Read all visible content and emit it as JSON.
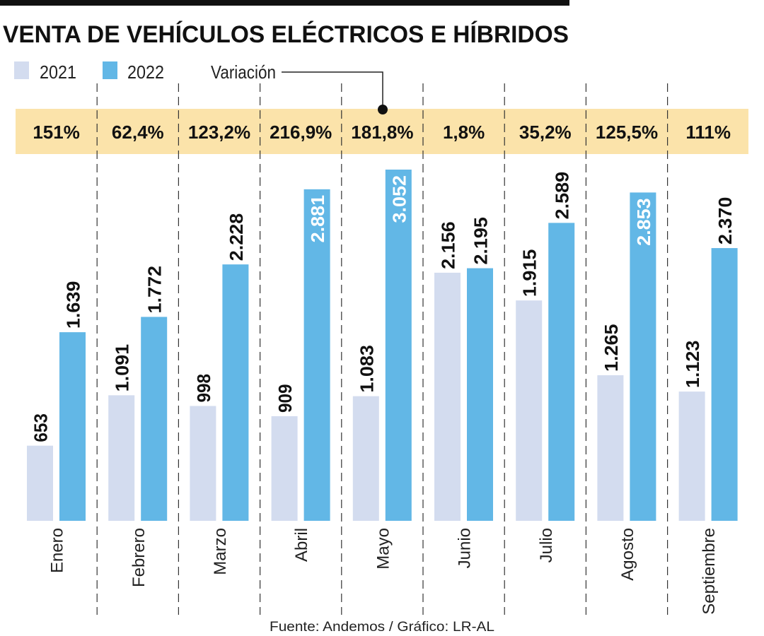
{
  "chart_data": {
    "type": "bar",
    "title": "VENTA DE VEHÍCULOS ELÉCTRICOS E HÍBRIDOS",
    "categories": [
      "Enero",
      "Febrero",
      "Marzo",
      "Abril",
      "Mayo",
      "Junio",
      "Julio",
      "Agosto",
      "Septiembre"
    ],
    "series": [
      {
        "name": "2021",
        "color": "#d3dcef",
        "values": [
          653,
          1091,
          998,
          909,
          1083,
          2156,
          1915,
          1265,
          1123
        ],
        "labels": [
          "653",
          "1.091",
          "998",
          "909",
          "1.083",
          "2.156",
          "1.915",
          "1.265",
          "1.123"
        ]
      },
      {
        "name": "2022",
        "color": "#62b7e6",
        "values": [
          1639,
          1772,
          2228,
          2881,
          3052,
          2195,
          2589,
          2853,
          2370
        ],
        "labels": [
          "1.639",
          "1.772",
          "2.228",
          "2.881",
          "3.052",
          "2.195",
          "2.589",
          "2.853",
          "2.370"
        ]
      }
    ],
    "variation_label": "Variación",
    "variation": [
      "151%",
      "62,4%",
      "123,2%",
      "216,9%",
      "181,8%",
      "1,8%",
      "35,2%",
      "125,5%",
      "111%"
    ],
    "variation_band_color": "#fbe3aa",
    "legend": "top-left",
    "grid": false,
    "ylim": [
      0,
      3052
    ],
    "source": "Fuente: Andemos / Gráfico: LR-AL"
  }
}
